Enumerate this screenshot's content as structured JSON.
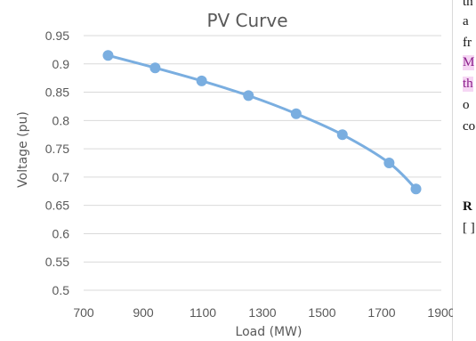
{
  "side_text": {
    "lines": [
      "th",
      "a",
      "fr",
      "M",
      "th",
      "o",
      "co",
      "",
      "R",
      "[ ]"
    ]
  },
  "chart_data": {
    "type": "line",
    "title": "PV Curve",
    "xlabel": "Load (MW)",
    "ylabel": "Voltage (pu)",
    "xlim": [
      700,
      1900
    ],
    "ylim": [
      0.5,
      0.95
    ],
    "x_ticks": [
      700,
      900,
      1100,
      1300,
      1500,
      1700,
      1900
    ],
    "y_ticks": [
      0.5,
      0.55,
      0.6,
      0.65,
      0.7,
      0.75,
      0.8,
      0.85,
      0.9,
      0.95
    ],
    "grid": "horizontal",
    "series": [
      {
        "color": "#7aaee0",
        "x": [
          782,
          940,
          1096,
          1253,
          1413,
          1568,
          1725,
          1815
        ],
        "y": [
          0.915,
          0.893,
          0.87,
          0.844,
          0.812,
          0.775,
          0.725,
          0.679
        ]
      }
    ]
  }
}
